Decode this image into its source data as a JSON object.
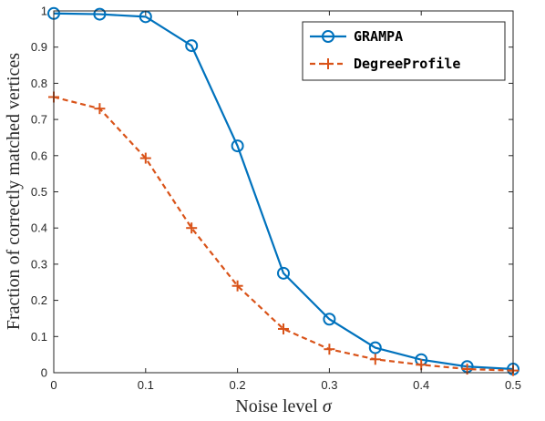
{
  "chart_data": {
    "type": "line",
    "title": "",
    "xlabel": "Noise level σ",
    "ylabel": "Fraction of correctly matched vertices",
    "xlim": [
      0,
      0.5
    ],
    "ylim": [
      0,
      1
    ],
    "x_ticks": [
      "0",
      "0.1",
      "0.2",
      "0.3",
      "0.4",
      "0.5"
    ],
    "y_ticks": [
      "0",
      "0.1",
      "0.2",
      "0.3",
      "0.4",
      "0.5",
      "0.6",
      "0.7",
      "0.8",
      "0.9",
      "1"
    ],
    "x": [
      0,
      0.05,
      0.1,
      0.15,
      0.2,
      0.25,
      0.3,
      0.35,
      0.4,
      0.45,
      0.5
    ],
    "series": [
      {
        "name": "GRAMPA",
        "color": "#0072BD",
        "line": "solid",
        "marker": "circle",
        "values": [
          0.993,
          0.991,
          0.984,
          0.904,
          0.627,
          0.275,
          0.148,
          0.069,
          0.036,
          0.017,
          0.01
        ]
      },
      {
        "name": "DegreeProfile",
        "color": "#D95319",
        "line": "dashed",
        "marker": "plus",
        "values": [
          0.762,
          0.73,
          0.593,
          0.4,
          0.24,
          0.121,
          0.065,
          0.037,
          0.022,
          0.01,
          0.006
        ]
      }
    ],
    "grid": false,
    "legend_position": "top-right"
  }
}
